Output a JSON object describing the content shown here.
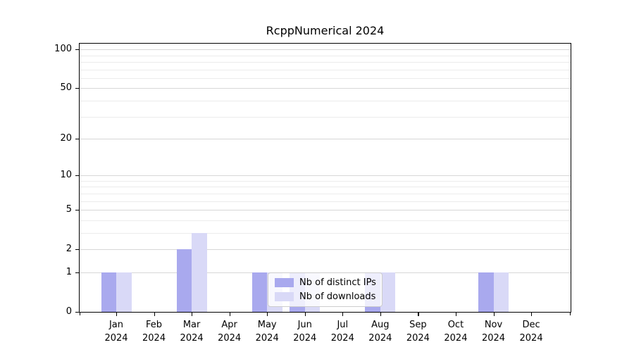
{
  "title": "RcppNumerical 2024",
  "chart_data": {
    "type": "bar",
    "title": "RcppNumerical 2024",
    "categories": [
      "Jan",
      "Feb",
      "Mar",
      "Apr",
      "May",
      "Jun",
      "Jul",
      "Aug",
      "Sep",
      "Oct",
      "Nov",
      "Dec"
    ],
    "year": "2024",
    "series": [
      {
        "name": "Nb of distinct IPs",
        "color": "#a9a9ee",
        "values": [
          1,
          0,
          2,
          0,
          1,
          1,
          0,
          1,
          0,
          0,
          1,
          0
        ]
      },
      {
        "name": "Nb of downloads",
        "color": "#d9d9f7",
        "values": [
          1,
          0,
          3,
          0,
          1,
          1,
          0,
          1,
          0,
          0,
          1,
          0
        ]
      }
    ],
    "y_scale": "log1p",
    "y_ticks": [
      0,
      1,
      2,
      5,
      10,
      20,
      50,
      100
    ],
    "y_minor_gridlines": [
      3,
      4,
      6,
      7,
      8,
      9,
      30,
      40,
      60,
      70,
      80,
      90
    ],
    "ylim": [
      0,
      111
    ],
    "grid": "horizontal",
    "legend_position": "lower center"
  }
}
